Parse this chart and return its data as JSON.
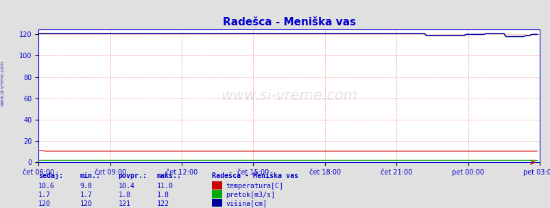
{
  "title": "Radešca - Meniška vas",
  "title_color": "#0000cc",
  "background_color": "#e0e0e0",
  "plot_bg_color": "#ffffff",
  "grid_color": "#ff9999",
  "axis_color": "#0000cc",
  "tick_color": "#0000cc",
  "watermark": "www.si-vreme.com",
  "x_labels": [
    "čet 06:00",
    "čet 09:00",
    "čet 12:00",
    "čet 15:00",
    "čet 18:00",
    "čet 21:00",
    "pet 00:00",
    "pet 03:00"
  ],
  "y_ticks": [
    0,
    20,
    40,
    60,
    80,
    100,
    120
  ],
  "ylim": [
    0,
    125
  ],
  "n_points": 252,
  "temperatura_sedaj": 10.6,
  "temperatura_min": 9.8,
  "temperatura_povpr": 10.4,
  "temperatura_maks": 11.0,
  "pretok_sedaj": 1.7,
  "pretok_min": 1.7,
  "pretok_povpr": 1.8,
  "pretok_maks": 1.8,
  "visina_sedaj": 120,
  "visina_min": 120,
  "visina_povpr": 121,
  "visina_maks": 122,
  "color_temp": "#cc0000",
  "color_pretok": "#00aa00",
  "color_visina": "#000099",
  "legend_title": "Radešca - Meniška vas",
  "label_temp": "temperatura[C]",
  "label_pretok": "pretok[m3/s]",
  "label_visina": "višina[cm]",
  "table_headers": [
    "sedaj:",
    "min.:",
    "povpr.:",
    "maks.:"
  ],
  "footer_color": "#0000cc",
  "left_label_color": "#0000aa",
  "left_label": "www.si-vreme.com"
}
